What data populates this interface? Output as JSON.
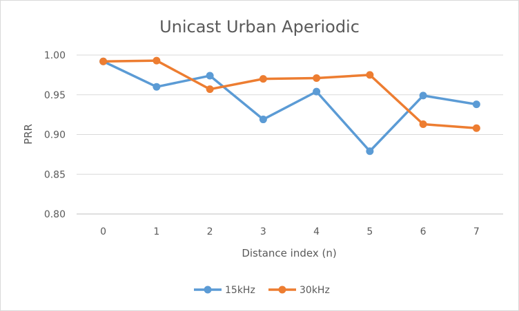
{
  "chart_data": {
    "type": "line",
    "title": "Unicast Urban Aperiodic",
    "xlabel": "Distance index (n)",
    "ylabel": "PRR",
    "categories": [
      "0",
      "1",
      "2",
      "3",
      "4",
      "5",
      "6",
      "7"
    ],
    "ylim": [
      0.8,
      1.0
    ],
    "yticks": [
      "0.80",
      "0.85",
      "0.90",
      "0.95",
      "1.00"
    ],
    "grid": true,
    "legend_position": "bottom",
    "series": [
      {
        "name": "15kHz",
        "color": "#5b9bd5",
        "values": [
          0.992,
          0.96,
          0.974,
          0.919,
          0.954,
          0.879,
          0.949,
          0.938
        ]
      },
      {
        "name": "30kHz",
        "color": "#ed7d31",
        "values": [
          0.992,
          0.993,
          0.957,
          0.97,
          0.971,
          0.975,
          0.913,
          0.908
        ]
      }
    ]
  }
}
